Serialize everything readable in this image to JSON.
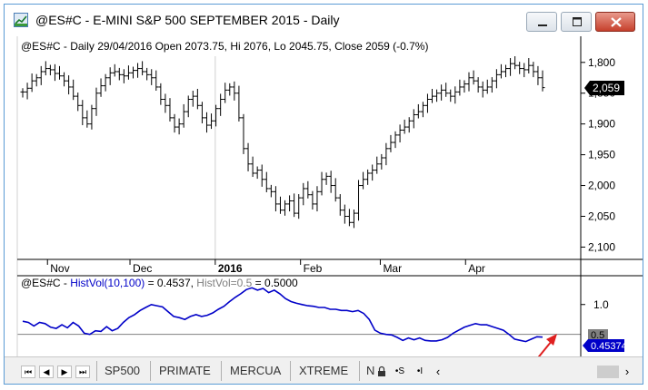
{
  "window": {
    "title": "@ES#C - E-MINI S&P 500 SEPTEMBER 2015 - Daily",
    "controls": [
      "minimize",
      "maximize",
      "close"
    ]
  },
  "price_pane": {
    "header": "@ES#C - Daily 29/04/2016 Open 2073.75, Hi 2076, Lo 2045.75, Close 2059 (-0.7%)",
    "last_price_label": "2,059",
    "y_ticks": [
      "2,100",
      "2,050",
      "2,000",
      "1,950",
      "1,900",
      "1,850",
      "1,800"
    ]
  },
  "time_axis": {
    "labels": [
      "Nov",
      "Dec",
      "2016",
      "Feb",
      "Mar",
      "Apr"
    ]
  },
  "indicator_pane": {
    "header_symbol": "@ES#C - ",
    "header_indicator": "HistVol(10,100)",
    "header_value": " = 0.4537, ",
    "header_level": "HistVol=0.5",
    "header_level_value": " = 0.5000",
    "y_ticks": [
      "1.0"
    ],
    "level_label": "0.5",
    "value_label": "0.45374",
    "colors": {
      "line": "#0000c8",
      "level": "#808080",
      "badge": "#000000",
      "arrow": "#e02020"
    }
  },
  "chart_data": [
    {
      "type": "line",
      "style": "ohlc-bars",
      "x_start": "2015-10-23",
      "x_end": "2016-04-29",
      "ylim": [
        1780,
        2110
      ],
      "y_ticks": [
        1800,
        1850,
        1900,
        1950,
        2000,
        2050,
        2100
      ],
      "x_ticks": [
        "Nov",
        "Dec",
        "2016",
        "Feb",
        "Mar",
        "Apr"
      ],
      "last_value": 2059,
      "series": [
        {
          "values": [
            2052,
            2058,
            2070,
            2075,
            2085,
            2090,
            2088,
            2082,
            2078,
            2070,
            2060,
            2045,
            2030,
            2010,
            2000,
            2025,
            2050,
            2062,
            2075,
            2083,
            2085,
            2080,
            2078,
            2083,
            2087,
            2090,
            2085,
            2080,
            2075,
            2060,
            2040,
            2030,
            2010,
            1995,
            2000,
            2020,
            2040,
            2045,
            2030,
            2010,
            1998,
            2005,
            2025,
            2040,
            2055,
            2060,
            2050,
            2010,
            1960,
            1935,
            1920,
            1925,
            1910,
            1895,
            1890,
            1870,
            1860,
            1870,
            1875,
            1855,
            1880,
            1895,
            1885,
            1870,
            1890,
            1910,
            1915,
            1900,
            1880,
            1860,
            1850,
            1840,
            1855,
            1900,
            1910,
            1920,
            1925,
            1935,
            1945,
            1960,
            1970,
            1982,
            1990,
            1995,
            2005,
            2015,
            2020,
            2030,
            2040,
            2045,
            2050,
            2055,
            2050,
            2045,
            2052,
            2060,
            2065,
            2075,
            2070,
            2060,
            2055,
            2060,
            2070,
            2080,
            2085,
            2090,
            2098,
            2095,
            2090,
            2088,
            2095,
            2085,
            2075,
            2059
          ]
        }
      ]
    },
    {
      "type": "line",
      "x_start": "2015-10-23",
      "x_end": "2016-04-29",
      "ylim": [
        0.1,
        1.3
      ],
      "y_ticks": [
        1.0
      ],
      "level": 0.5,
      "last_value": 0.4537,
      "series": [
        {
          "name": "HistVol(10,100)",
          "values": [
            0.72,
            0.7,
            0.64,
            0.7,
            0.68,
            0.62,
            0.6,
            0.66,
            0.61,
            0.7,
            0.64,
            0.52,
            0.5,
            0.56,
            0.55,
            0.63,
            0.56,
            0.6,
            0.7,
            0.78,
            0.83,
            0.9,
            0.95,
            1.0,
            0.98,
            0.96,
            0.88,
            0.8,
            0.78,
            0.75,
            0.8,
            0.83,
            0.8,
            0.82,
            0.86,
            0.92,
            0.97,
            1.05,
            1.12,
            1.18,
            1.25,
            1.28,
            1.24,
            1.27,
            1.2,
            1.24,
            1.18,
            1.1,
            1.05,
            1.02,
            1.0,
            0.98,
            0.97,
            0.95,
            0.95,
            0.92,
            0.92,
            0.9,
            0.9,
            0.88,
            0.9,
            0.85,
            0.75,
            0.57,
            0.52,
            0.5,
            0.49,
            0.45,
            0.4,
            0.44,
            0.41,
            0.44,
            0.4,
            0.39,
            0.39,
            0.41,
            0.45,
            0.52,
            0.57,
            0.62,
            0.65,
            0.68,
            0.66,
            0.66,
            0.63,
            0.6,
            0.57,
            0.5,
            0.42,
            0.4,
            0.38,
            0.42,
            0.46,
            0.4537
          ]
        }
      ]
    }
  ],
  "tabs": {
    "items": [
      "SP500",
      "PRIMATE",
      "MERCUA",
      "XTREME",
      "N"
    ],
    "buttons": [
      "•S",
      "•I"
    ]
  }
}
